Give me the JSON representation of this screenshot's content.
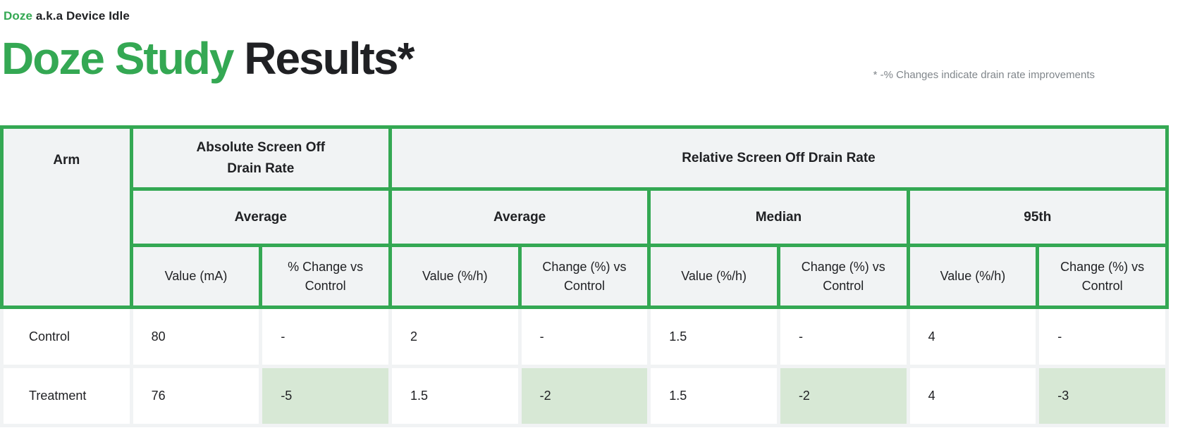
{
  "colors": {
    "green": "#34a853",
    "headerbg": "#f1f3f4",
    "grid": "#f1f3f4",
    "hl": "#d7e8d5",
    "text": "#202124",
    "muted": "#80868b"
  },
  "kicker": {
    "highlight": "Doze",
    "rest": " a.k.a Device Idle"
  },
  "title": {
    "highlight": "Doze Study",
    "rest": " Results*"
  },
  "footnote": "* -% Changes indicate drain rate improvements",
  "table": {
    "header": {
      "arm": "Arm",
      "group_absolute": "Absolute Screen Off\nDrain Rate",
      "group_relative": "Relative Screen Off Drain Rate",
      "subgroups": [
        "Average",
        "Average",
        "Median",
        "95th"
      ],
      "columns": [
        "Value (mA)",
        "% Change vs Control",
        "Value (%/h)",
        "Change (%) vs Control",
        "Value (%/h)",
        "Change (%) vs Control",
        "Value (%/h)",
        "Change (%) vs Control"
      ]
    },
    "rows": [
      {
        "arm": "Control",
        "values": [
          "80",
          "-",
          "2",
          "-",
          "1.5",
          "-",
          "4",
          "-"
        ]
      },
      {
        "arm": "Treatment",
        "values": [
          "76",
          "-5",
          "1.5",
          "-2",
          "1.5",
          "-2",
          "4",
          "-3"
        ]
      }
    ]
  }
}
